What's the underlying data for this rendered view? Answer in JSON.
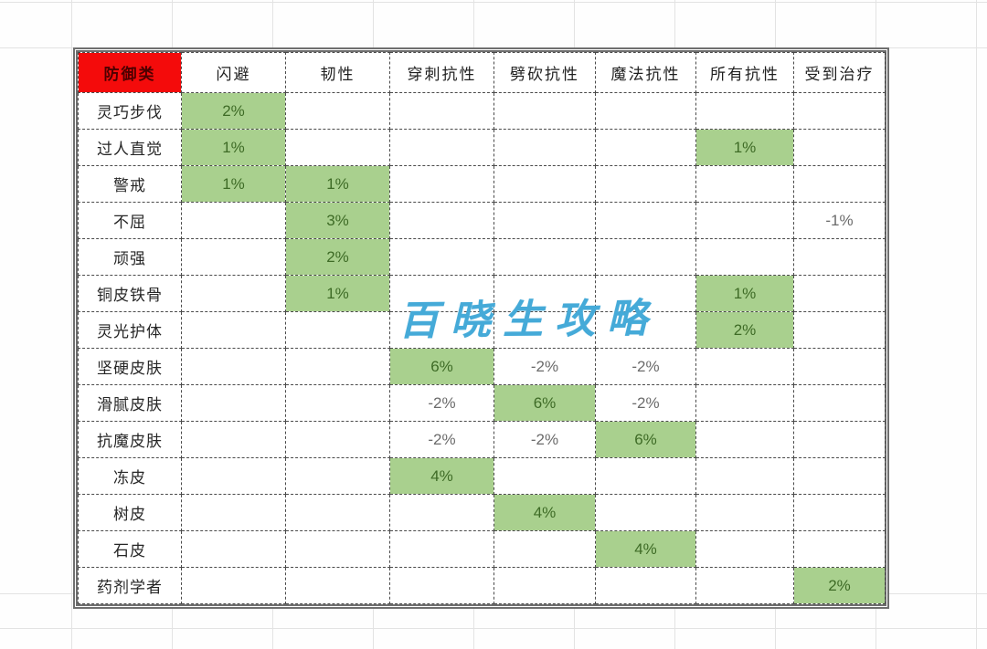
{
  "watermark": {
    "text": "百晓生攻略",
    "color": "#45aad8"
  },
  "table": {
    "header": {
      "corner": "防御类",
      "corner_bg": "#f40b0b",
      "corner_color": "#4d0000",
      "columns": [
        "闪避",
        "韧性",
        "穿刺抗性",
        "劈砍抗性",
        "魔法抗性",
        "所有抗性",
        "受到治疗"
      ]
    },
    "colors": {
      "highlight": "#a9d08e",
      "positive_text": "#3e6b26",
      "negative_text": "#6b6b6b"
    },
    "rows": [
      {
        "label": "灵巧步伐",
        "cells": [
          {
            "v": "2%",
            "hl": true
          },
          null,
          null,
          null,
          null,
          null,
          null
        ]
      },
      {
        "label": "过人直觉",
        "cells": [
          {
            "v": "1%",
            "hl": true
          },
          null,
          null,
          null,
          null,
          {
            "v": "1%",
            "hl": true
          },
          null
        ]
      },
      {
        "label": "警戒",
        "cells": [
          {
            "v": "1%",
            "hl": true
          },
          {
            "v": "1%",
            "hl": true
          },
          null,
          null,
          null,
          null,
          null
        ]
      },
      {
        "label": "不屈",
        "cells": [
          null,
          {
            "v": "3%",
            "hl": true
          },
          null,
          null,
          null,
          null,
          {
            "v": "-1%",
            "hl": false
          }
        ]
      },
      {
        "label": "顽强",
        "cells": [
          null,
          {
            "v": "2%",
            "hl": true
          },
          null,
          null,
          null,
          null,
          null
        ]
      },
      {
        "label": "铜皮铁骨",
        "cells": [
          null,
          {
            "v": "1%",
            "hl": true
          },
          null,
          null,
          null,
          {
            "v": "1%",
            "hl": true
          },
          null
        ]
      },
      {
        "label": "灵光护体",
        "cells": [
          null,
          null,
          null,
          null,
          null,
          {
            "v": "2%",
            "hl": true
          },
          null
        ]
      },
      {
        "label": "坚硬皮肤",
        "cells": [
          null,
          null,
          {
            "v": "6%",
            "hl": true
          },
          {
            "v": "-2%",
            "hl": false
          },
          {
            "v": "-2%",
            "hl": false
          },
          null,
          null
        ]
      },
      {
        "label": "滑腻皮肤",
        "cells": [
          null,
          null,
          {
            "v": "-2%",
            "hl": false
          },
          {
            "v": "6%",
            "hl": true
          },
          {
            "v": "-2%",
            "hl": false
          },
          null,
          null
        ]
      },
      {
        "label": "抗魔皮肤",
        "cells": [
          null,
          null,
          {
            "v": "-2%",
            "hl": false
          },
          {
            "v": "-2%",
            "hl": false
          },
          {
            "v": "6%",
            "hl": true
          },
          null,
          null
        ]
      },
      {
        "label": "冻皮",
        "cells": [
          null,
          null,
          {
            "v": "4%",
            "hl": true
          },
          null,
          null,
          null,
          null
        ]
      },
      {
        "label": "树皮",
        "cells": [
          null,
          null,
          null,
          {
            "v": "4%",
            "hl": true
          },
          null,
          null,
          null
        ]
      },
      {
        "label": "石皮",
        "cells": [
          null,
          null,
          null,
          null,
          {
            "v": "4%",
            "hl": true
          },
          null,
          null
        ]
      },
      {
        "label": "药剂学者",
        "cells": [
          null,
          null,
          null,
          null,
          null,
          null,
          {
            "v": "2%",
            "hl": true
          }
        ]
      }
    ]
  }
}
